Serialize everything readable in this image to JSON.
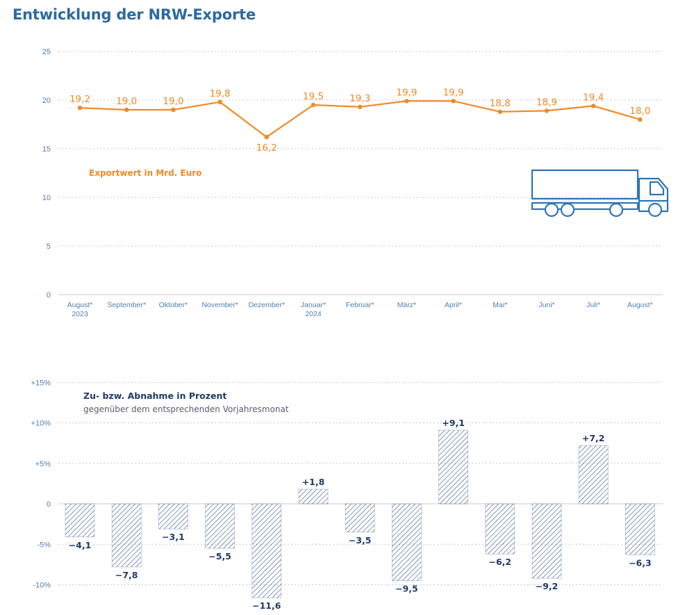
{
  "title": "Entwicklung der NRW-Exporte",
  "colors": {
    "title": "#2d6a9f",
    "line": "#f08a24",
    "axis_text": "#4f7fae",
    "bar_hatch": "#3f5f8f",
    "bar_label": "#1f3b66",
    "grid": "#c8c8c8",
    "truck": "#2e74b5"
  },
  "categories": [
    [
      "August*",
      "2023"
    ],
    [
      "September*",
      ""
    ],
    [
      "Oktober*",
      ""
    ],
    [
      "November*",
      ""
    ],
    [
      "Dezember*",
      ""
    ],
    [
      "Januar*",
      "2024"
    ],
    [
      "Februar*",
      ""
    ],
    [
      "März*",
      ""
    ],
    [
      "April*",
      ""
    ],
    [
      "Mai*",
      ""
    ],
    [
      "Juni*",
      ""
    ],
    [
      "Juli*",
      ""
    ],
    [
      "August*",
      ""
    ]
  ],
  "icon": "truck-icon",
  "chart_data": [
    {
      "type": "line",
      "note": "Exportwert in Mrd. Euro",
      "ylim": [
        0,
        25
      ],
      "yticks": [
        {
          "v": 0,
          "label": "0"
        },
        {
          "v": 5,
          "label": "5"
        },
        {
          "v": 10,
          "label": "10"
        },
        {
          "v": 15,
          "label": "15"
        },
        {
          "v": 20,
          "label": "20"
        },
        {
          "v": 25,
          "label": "25"
        }
      ],
      "values": [
        19.2,
        19.0,
        19.0,
        19.8,
        16.2,
        19.5,
        19.3,
        19.9,
        19.9,
        18.8,
        18.9,
        19.4,
        18.0
      ],
      "value_labels": [
        "19,2",
        "19,0",
        "19,0",
        "19,8",
        "16,2",
        "19,5",
        "19,3",
        "19,9",
        "19,9",
        "18,8",
        "18,9",
        "19,4",
        "18,0"
      ],
      "grid": true
    },
    {
      "type": "bar",
      "note_title": "Zu- bzw. Abnahme in Prozent",
      "note_subtitle": "gegenüber dem entsprechenden Vorjahresmonat",
      "ylim": [
        -12,
        15
      ],
      "yticks": [
        {
          "v": -10,
          "label": "-10%"
        },
        {
          "v": -5,
          "label": "-5%"
        },
        {
          "v": 0,
          "label": "0"
        },
        {
          "v": 5,
          "label": "+5%"
        },
        {
          "v": 10,
          "label": "+10%"
        },
        {
          "v": 15,
          "label": "+15%"
        }
      ],
      "values": [
        -4.1,
        -7.8,
        -3.1,
        -5.5,
        -11.6,
        1.8,
        -3.5,
        -9.5,
        9.1,
        -6.2,
        -9.2,
        7.2,
        -6.3
      ],
      "value_labels": [
        "−4,1",
        "−7,8",
        "−3,1",
        "−5,5",
        "−11,6",
        "+1,8",
        "−3,5",
        "−9,5",
        "+9,1",
        "−6,2",
        "−9,2",
        "+7,2",
        "−6,3"
      ],
      "grid": true
    }
  ]
}
